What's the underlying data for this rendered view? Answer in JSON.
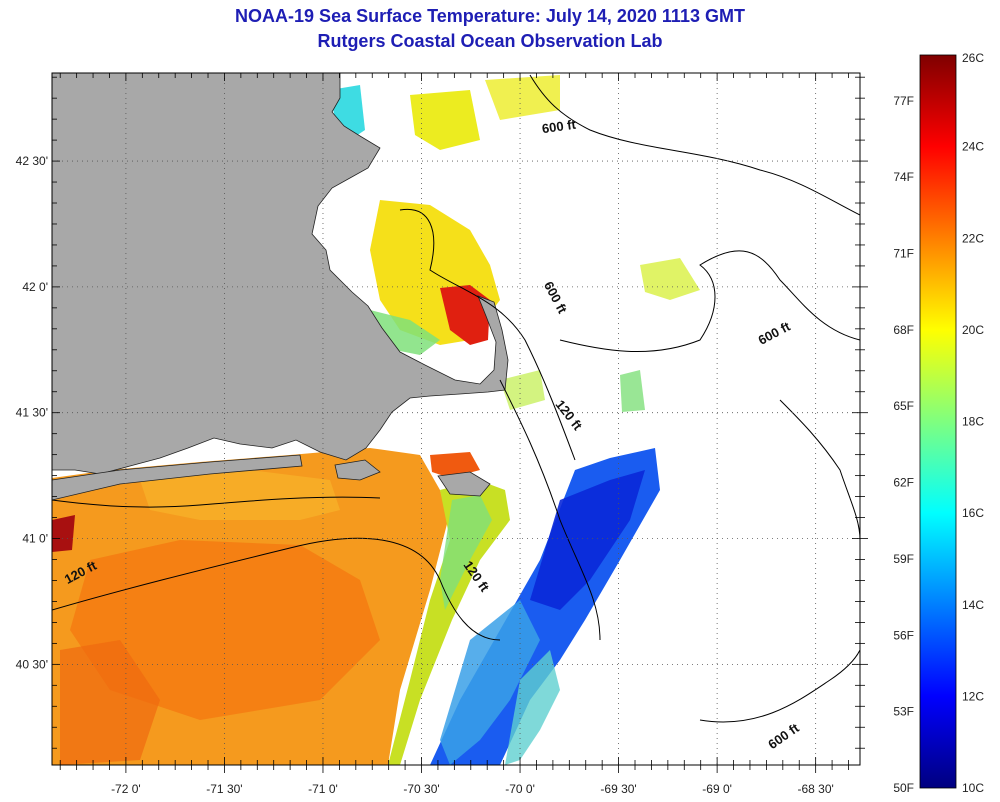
{
  "title": "NOAA-19 Sea Surface Temperature:  July 14, 2020 1113 GMT",
  "subtitle": "Rutgers Coastal Ocean Observation Lab",
  "map": {
    "lon_range": [
      -72.375,
      -68.275
    ],
    "lat_range": [
      40.1,
      42.85
    ],
    "x_ticks": [
      {
        "value": -72.0,
        "label": "-72 0'"
      },
      {
        "value": -71.5,
        "label": "-71 30'"
      },
      {
        "value": -71.0,
        "label": "-71 0'"
      },
      {
        "value": -70.5,
        "label": "-70 30'"
      },
      {
        "value": -70.0,
        "label": "-70 0'"
      },
      {
        "value": -69.5,
        "label": "-69 30'"
      },
      {
        "value": -69.0,
        "label": "-69 0'"
      },
      {
        "value": -68.5,
        "label": "-68 30'"
      }
    ],
    "y_ticks": [
      {
        "value": 42.5,
        "label": "42 30'"
      },
      {
        "value": 42.0,
        "label": "42 0'"
      },
      {
        "value": 41.5,
        "label": "41 30'"
      },
      {
        "value": 41.0,
        "label": "41 0'"
      },
      {
        "value": 40.5,
        "label": "40 30'"
      }
    ],
    "contour_labels": [
      {
        "text": "600 ft",
        "lon": -69.8,
        "lat": 42.62,
        "rotate": -8
      },
      {
        "text": "600 ft",
        "lon": -69.84,
        "lat": 41.95,
        "rotate": 62
      },
      {
        "text": "600 ft",
        "lon": -68.7,
        "lat": 41.8,
        "rotate": -28
      },
      {
        "text": "120 ft",
        "lon": -69.77,
        "lat": 41.48,
        "rotate": 52
      },
      {
        "text": "120 ft",
        "lon": -70.24,
        "lat": 40.84,
        "rotate": 55
      },
      {
        "text": "120 ft",
        "lon": -72.22,
        "lat": 40.85,
        "rotate": -28
      },
      {
        "text": "600 ft",
        "lon": -68.65,
        "lat": 40.2,
        "rotate": -35
      }
    ],
    "land_color": "#a8a8a8",
    "no_data_color": "#ffffff"
  },
  "colorbar": {
    "min_c": 10,
    "max_c": 26,
    "celsius_labels": [
      "26C",
      "24C",
      "22C",
      "20C",
      "18C",
      "16C",
      "14C",
      "12C",
      "10C"
    ],
    "fahrenheit_labels": [
      "77F",
      "74F",
      "71F",
      "68F",
      "65F",
      "62F",
      "59F",
      "56F",
      "53F",
      "50F"
    ],
    "colors": [
      "#00007f",
      "#0000ff",
      "#007fff",
      "#00ffff",
      "#7fff7f",
      "#ffff00",
      "#ff7f00",
      "#ff0000",
      "#7f0000"
    ]
  }
}
